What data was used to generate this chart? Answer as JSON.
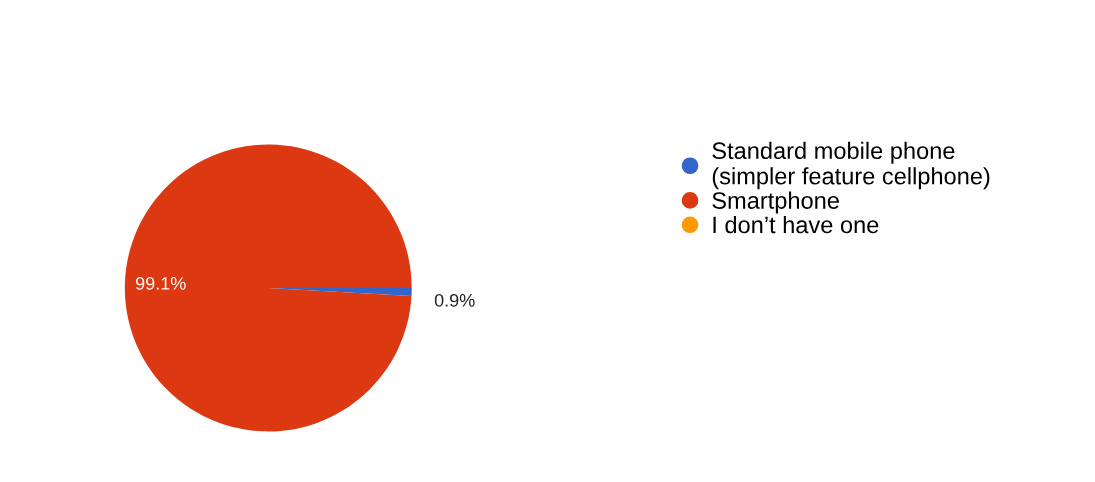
{
  "chart_data": {
    "type": "pie",
    "categories": [
      "Standard mobile phone\n(simpler feature cellphone)",
      "Smartphone",
      "I don’t have one"
    ],
    "values": [
      0.9,
      99.1,
      0
    ],
    "colors": [
      "#3366cc",
      "#dc3912",
      "#ff9900"
    ],
    "value_labels": [
      "0.9%",
      "99.1%",
      null
    ],
    "legend": "right"
  }
}
